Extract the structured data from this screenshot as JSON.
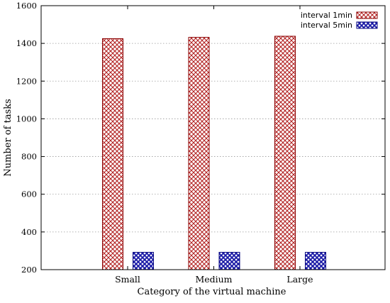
{
  "chart_data": {
    "type": "bar",
    "title": "",
    "xlabel": "Category of the virtual machine",
    "ylabel": "Number of tasks",
    "ylim": [
      200,
      1600
    ],
    "yticks": [
      "200",
      "400",
      "600",
      "800",
      "1000",
      "1200",
      "1400",
      "1600"
    ],
    "grid": true,
    "legend_position": "top-right",
    "categories": [
      "Small",
      "Medium",
      "Large"
    ],
    "series": [
      {
        "name": "interval 1min",
        "values": [
          1425,
          1432,
          1438
        ],
        "color": "#b22222",
        "pattern": "crosshatch"
      },
      {
        "name": "interval 5min",
        "values": [
          292,
          292,
          292
        ],
        "color": "#1a1aa6",
        "pattern": "crosshatch"
      }
    ]
  }
}
